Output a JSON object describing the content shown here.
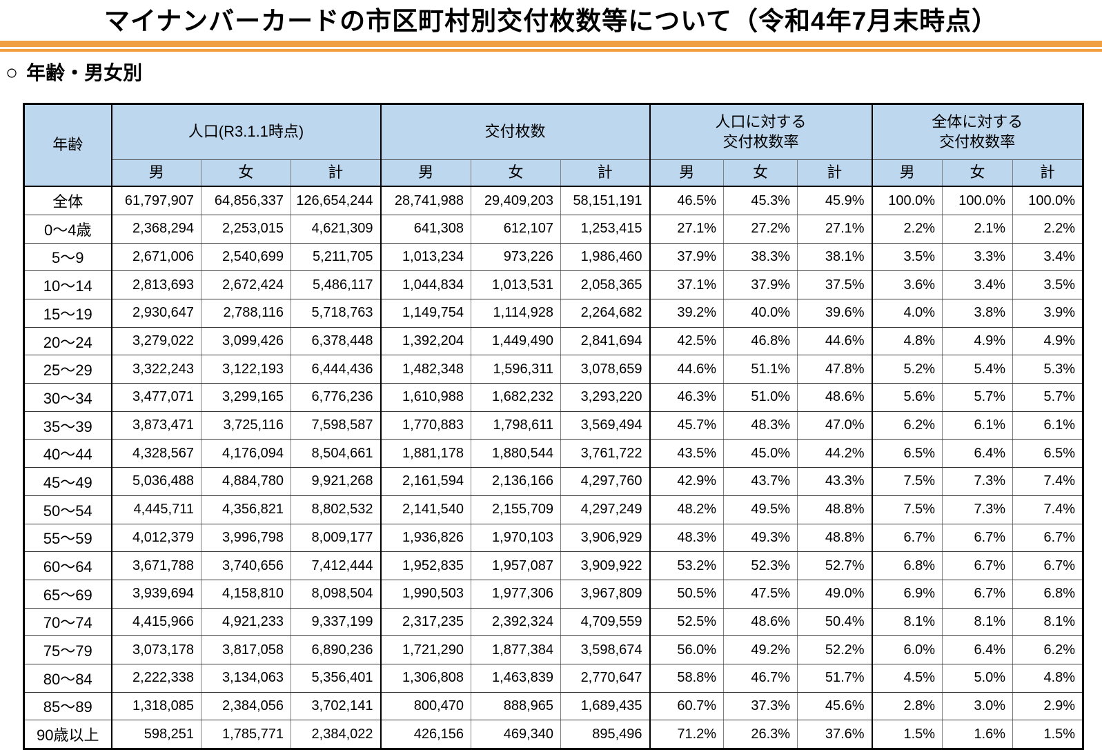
{
  "title": "マイナンバーカードの市区町村別交付枚数等について（令和4年7月末時点）",
  "section_marker": "○",
  "section_heading": "年齢・男女別",
  "colors": {
    "header_bg": "#BDD7EE",
    "divider_orange": "#F0A041",
    "table_border": "#000000"
  },
  "table": {
    "header": {
      "age": "年齢",
      "groups": [
        {
          "label": "人口(R3.1.1時点)",
          "cols": [
            "男",
            "女",
            "計"
          ]
        },
        {
          "label": "交付枚数",
          "cols": [
            "男",
            "女",
            "計"
          ]
        },
        {
          "label": "人口に対する\n交付枚数率",
          "cols": [
            "男",
            "女",
            "計"
          ]
        },
        {
          "label": "全体に対する\n交付枚数率",
          "cols": [
            "男",
            "女",
            "計"
          ]
        }
      ]
    },
    "rows": [
      {
        "age": "全体",
        "population": [
          "61,797,907",
          "64,856,337",
          "126,654,244"
        ],
        "issued": [
          "28,741,988",
          "29,409,203",
          "58,151,191"
        ],
        "rate_pop": [
          "46.5%",
          "45.3%",
          "45.9%"
        ],
        "rate_total": [
          "100.0%",
          "100.0%",
          "100.0%"
        ]
      },
      {
        "age": "0～4歳",
        "population": [
          "2,368,294",
          "2,253,015",
          "4,621,309"
        ],
        "issued": [
          "641,308",
          "612,107",
          "1,253,415"
        ],
        "rate_pop": [
          "27.1%",
          "27.2%",
          "27.1%"
        ],
        "rate_total": [
          "2.2%",
          "2.1%",
          "2.2%"
        ]
      },
      {
        "age": "5～9",
        "population": [
          "2,671,006",
          "2,540,699",
          "5,211,705"
        ],
        "issued": [
          "1,013,234",
          "973,226",
          "1,986,460"
        ],
        "rate_pop": [
          "37.9%",
          "38.3%",
          "38.1%"
        ],
        "rate_total": [
          "3.5%",
          "3.3%",
          "3.4%"
        ]
      },
      {
        "age": "10～14",
        "population": [
          "2,813,693",
          "2,672,424",
          "5,486,117"
        ],
        "issued": [
          "1,044,834",
          "1,013,531",
          "2,058,365"
        ],
        "rate_pop": [
          "37.1%",
          "37.9%",
          "37.5%"
        ],
        "rate_total": [
          "3.6%",
          "3.4%",
          "3.5%"
        ]
      },
      {
        "age": "15～19",
        "population": [
          "2,930,647",
          "2,788,116",
          "5,718,763"
        ],
        "issued": [
          "1,149,754",
          "1,114,928",
          "2,264,682"
        ],
        "rate_pop": [
          "39.2%",
          "40.0%",
          "39.6%"
        ],
        "rate_total": [
          "4.0%",
          "3.8%",
          "3.9%"
        ]
      },
      {
        "age": "20～24",
        "population": [
          "3,279,022",
          "3,099,426",
          "6,378,448"
        ],
        "issued": [
          "1,392,204",
          "1,449,490",
          "2,841,694"
        ],
        "rate_pop": [
          "42.5%",
          "46.8%",
          "44.6%"
        ],
        "rate_total": [
          "4.8%",
          "4.9%",
          "4.9%"
        ]
      },
      {
        "age": "25～29",
        "population": [
          "3,322,243",
          "3,122,193",
          "6,444,436"
        ],
        "issued": [
          "1,482,348",
          "1,596,311",
          "3,078,659"
        ],
        "rate_pop": [
          "44.6%",
          "51.1%",
          "47.8%"
        ],
        "rate_total": [
          "5.2%",
          "5.4%",
          "5.3%"
        ]
      },
      {
        "age": "30～34",
        "population": [
          "3,477,071",
          "3,299,165",
          "6,776,236"
        ],
        "issued": [
          "1,610,988",
          "1,682,232",
          "3,293,220"
        ],
        "rate_pop": [
          "46.3%",
          "51.0%",
          "48.6%"
        ],
        "rate_total": [
          "5.6%",
          "5.7%",
          "5.7%"
        ]
      },
      {
        "age": "35～39",
        "population": [
          "3,873,471",
          "3,725,116",
          "7,598,587"
        ],
        "issued": [
          "1,770,883",
          "1,798,611",
          "3,569,494"
        ],
        "rate_pop": [
          "45.7%",
          "48.3%",
          "47.0%"
        ],
        "rate_total": [
          "6.2%",
          "6.1%",
          "6.1%"
        ]
      },
      {
        "age": "40～44",
        "population": [
          "4,328,567",
          "4,176,094",
          "8,504,661"
        ],
        "issued": [
          "1,881,178",
          "1,880,544",
          "3,761,722"
        ],
        "rate_pop": [
          "43.5%",
          "45.0%",
          "44.2%"
        ],
        "rate_total": [
          "6.5%",
          "6.4%",
          "6.5%"
        ]
      },
      {
        "age": "45～49",
        "population": [
          "5,036,488",
          "4,884,780",
          "9,921,268"
        ],
        "issued": [
          "2,161,594",
          "2,136,166",
          "4,297,760"
        ],
        "rate_pop": [
          "42.9%",
          "43.7%",
          "43.3%"
        ],
        "rate_total": [
          "7.5%",
          "7.3%",
          "7.4%"
        ]
      },
      {
        "age": "50～54",
        "population": [
          "4,445,711",
          "4,356,821",
          "8,802,532"
        ],
        "issued": [
          "2,141,540",
          "2,155,709",
          "4,297,249"
        ],
        "rate_pop": [
          "48.2%",
          "49.5%",
          "48.8%"
        ],
        "rate_total": [
          "7.5%",
          "7.3%",
          "7.4%"
        ]
      },
      {
        "age": "55～59",
        "population": [
          "4,012,379",
          "3,996,798",
          "8,009,177"
        ],
        "issued": [
          "1,936,826",
          "1,970,103",
          "3,906,929"
        ],
        "rate_pop": [
          "48.3%",
          "49.3%",
          "48.8%"
        ],
        "rate_total": [
          "6.7%",
          "6.7%",
          "6.7%"
        ]
      },
      {
        "age": "60～64",
        "population": [
          "3,671,788",
          "3,740,656",
          "7,412,444"
        ],
        "issued": [
          "1,952,835",
          "1,957,087",
          "3,909,922"
        ],
        "rate_pop": [
          "53.2%",
          "52.3%",
          "52.7%"
        ],
        "rate_total": [
          "6.8%",
          "6.7%",
          "6.7%"
        ]
      },
      {
        "age": "65～69",
        "population": [
          "3,939,694",
          "4,158,810",
          "8,098,504"
        ],
        "issued": [
          "1,990,503",
          "1,977,306",
          "3,967,809"
        ],
        "rate_pop": [
          "50.5%",
          "47.5%",
          "49.0%"
        ],
        "rate_total": [
          "6.9%",
          "6.7%",
          "6.8%"
        ]
      },
      {
        "age": "70～74",
        "population": [
          "4,415,966",
          "4,921,233",
          "9,337,199"
        ],
        "issued": [
          "2,317,235",
          "2,392,324",
          "4,709,559"
        ],
        "rate_pop": [
          "52.5%",
          "48.6%",
          "50.4%"
        ],
        "rate_total": [
          "8.1%",
          "8.1%",
          "8.1%"
        ]
      },
      {
        "age": "75～79",
        "population": [
          "3,073,178",
          "3,817,058",
          "6,890,236"
        ],
        "issued": [
          "1,721,290",
          "1,877,384",
          "3,598,674"
        ],
        "rate_pop": [
          "56.0%",
          "49.2%",
          "52.2%"
        ],
        "rate_total": [
          "6.0%",
          "6.4%",
          "6.2%"
        ]
      },
      {
        "age": "80～84",
        "population": [
          "2,222,338",
          "3,134,063",
          "5,356,401"
        ],
        "issued": [
          "1,306,808",
          "1,463,839",
          "2,770,647"
        ],
        "rate_pop": [
          "58.8%",
          "46.7%",
          "51.7%"
        ],
        "rate_total": [
          "4.5%",
          "5.0%",
          "4.8%"
        ]
      },
      {
        "age": "85～89",
        "population": [
          "1,318,085",
          "2,384,056",
          "3,702,141"
        ],
        "issued": [
          "800,470",
          "888,965",
          "1,689,435"
        ],
        "rate_pop": [
          "60.7%",
          "37.3%",
          "45.6%"
        ],
        "rate_total": [
          "2.8%",
          "3.0%",
          "2.9%"
        ]
      },
      {
        "age": "90歳以上",
        "population": [
          "598,251",
          "1,785,771",
          "2,384,022"
        ],
        "issued": [
          "426,156",
          "469,340",
          "895,496"
        ],
        "rate_pop": [
          "71.2%",
          "26.3%",
          "37.6%"
        ],
        "rate_total": [
          "1.5%",
          "1.6%",
          "1.5%"
        ]
      }
    ]
  }
}
